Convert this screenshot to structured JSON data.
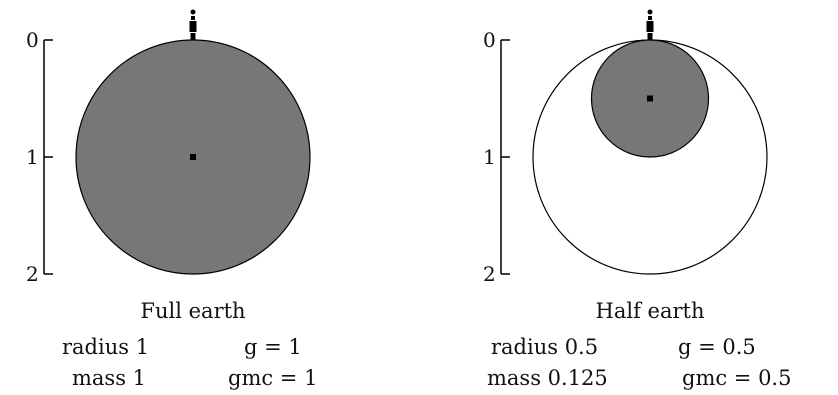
{
  "colors": {
    "planet_fill": "#777777",
    "outline": "#000000",
    "center_dot": "#000000",
    "background": "#ffffff"
  },
  "panels": [
    {
      "axis_ticks": [
        "0",
        "1",
        "2"
      ],
      "caption": "Full earth",
      "radius_text": "radius 1",
      "g_text": "g = 1",
      "mass_text": "mass 1",
      "gmc_text": "gmc = 1",
      "planet_radius": 1,
      "show_reference_outline": false
    },
    {
      "axis_ticks": [
        "0",
        "1",
        "2"
      ],
      "caption": "Half earth",
      "radius_text": "radius 0.5",
      "g_text": "g = 0.5",
      "mass_text": "mass 0.125",
      "gmc_text": "gmc = 0.5",
      "planet_radius": 0.5,
      "show_reference_outline": true
    }
  ]
}
